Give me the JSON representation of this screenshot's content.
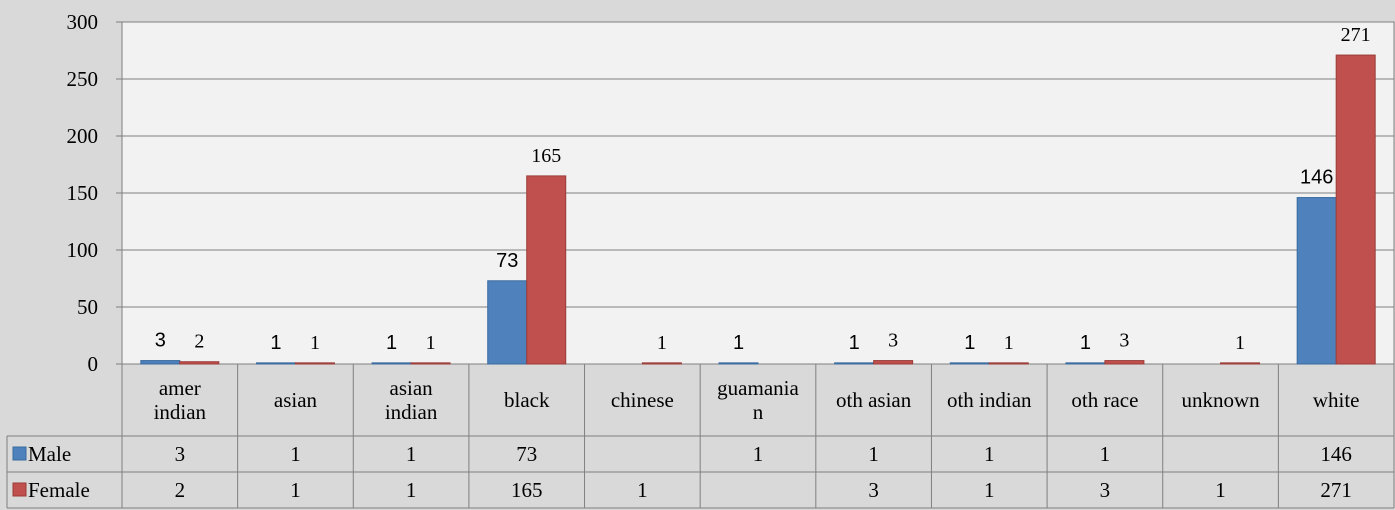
{
  "chart_data": {
    "type": "bar",
    "categories": [
      [
        "amer",
        "indian"
      ],
      [
        "asian"
      ],
      [
        "asian",
        "indian"
      ],
      [
        "black"
      ],
      [
        "chinese"
      ],
      [
        "guamania",
        "n"
      ],
      [
        "oth asian"
      ],
      [
        "oth indian"
      ],
      [
        "oth race"
      ],
      [
        "unknown"
      ],
      [
        "white"
      ]
    ],
    "series": [
      {
        "name": "Male",
        "color": "#4f81bd",
        "values": [
          3,
          1,
          1,
          73,
          null,
          1,
          1,
          1,
          1,
          null,
          146
        ],
        "labels": [
          "3",
          "1",
          "1",
          "73",
          "",
          "1",
          "1",
          "1",
          "1",
          "",
          "146"
        ]
      },
      {
        "name": "Female",
        "color": "#c0504d",
        "values": [
          2,
          1,
          1,
          165,
          1,
          null,
          3,
          1,
          3,
          1,
          271
        ],
        "labels": [
          "2",
          "1",
          "1",
          "165",
          "1",
          "",
          "3",
          "1",
          "3",
          "1",
          "271"
        ]
      }
    ],
    "yticks": [
      "0",
      "50",
      "100",
      "150",
      "200",
      "250",
      "300"
    ],
    "ylim": [
      0,
      300
    ],
    "grid": true,
    "legend": "data-table",
    "title": "",
    "xlabel": "",
    "ylabel": ""
  }
}
